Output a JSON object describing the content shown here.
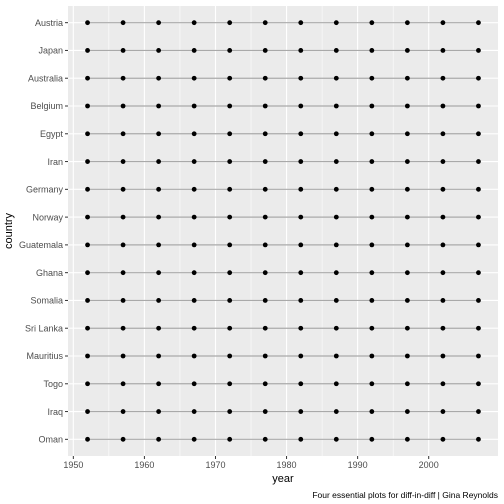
{
  "chart_data": {
    "type": "scatter",
    "title": "",
    "xlabel": "year",
    "ylabel": "country",
    "caption": "Four essential plots for diff-in-diff | Gina Reynolds",
    "countries": [
      "Austria",
      "Japan",
      "Australia",
      "Belgium",
      "Egypt",
      "Iran",
      "Germany",
      "Norway",
      "Guatemala",
      "Ghana",
      "Somalia",
      "Sri Lanka",
      "Mauritius",
      "Togo",
      "Iraq",
      "Oman"
    ],
    "x": [
      1952,
      1957,
      1962,
      1967,
      1972,
      1977,
      1982,
      1987,
      1992,
      1997,
      2002,
      2007
    ],
    "x_ticks": [
      1950,
      1960,
      1970,
      1980,
      1990,
      2000
    ],
    "xlim": [
      1949.25,
      2009.75
    ],
    "grid": true,
    "colors": {
      "panel": "#ebebeb",
      "grid": "#ffffff",
      "line": "#a9a9a9",
      "point": "#000000"
    }
  }
}
